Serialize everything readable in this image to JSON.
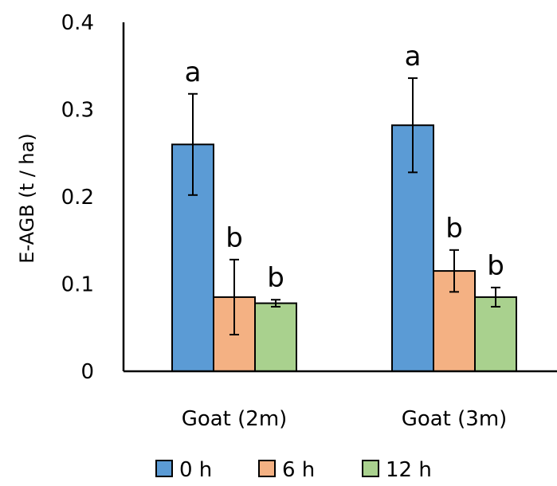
{
  "chart_data": {
    "type": "bar",
    "title": "",
    "xlabel": "",
    "ylabel": "E-AGB (t / ha)",
    "ylim": [
      0,
      0.4
    ],
    "yticks": [
      "0",
      "0.1",
      "0.2",
      "0.3",
      "0.4"
    ],
    "categories": [
      "Goat (2m)",
      "Goat (3m)"
    ],
    "grid": false,
    "legend_position": "bottom",
    "series": [
      {
        "name": "0 h",
        "color": "#5b9bd5",
        "values": [
          0.26,
          0.282
        ],
        "errors": [
          0.058,
          0.054
        ],
        "significance": [
          "a",
          "a"
        ]
      },
      {
        "name": "6 h",
        "color": "#f4b183",
        "values": [
          0.085,
          0.115
        ],
        "errors": [
          0.043,
          0.024
        ],
        "significance": [
          "b",
          "b"
        ]
      },
      {
        "name": "12 h",
        "color": "#a9d18e",
        "values": [
          0.078,
          0.085
        ],
        "errors": [
          0.004,
          0.011
        ],
        "significance": [
          "b",
          "b"
        ]
      }
    ]
  }
}
